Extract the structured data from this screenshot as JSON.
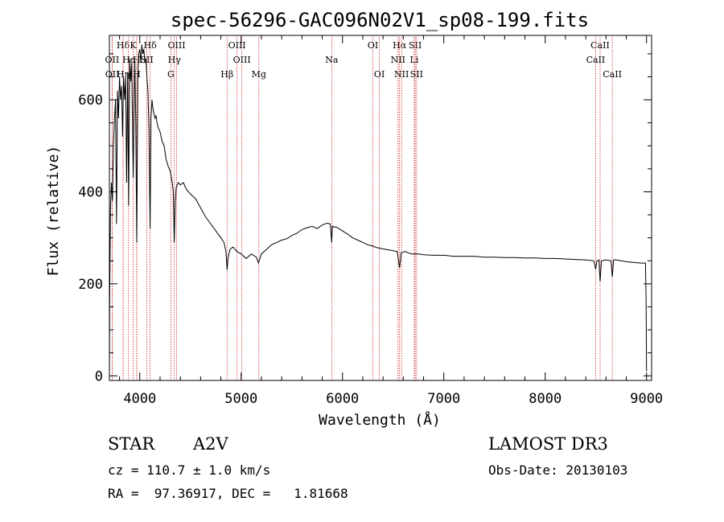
{
  "colors": {
    "axis": "#000000",
    "spectrum": "#000000",
    "line_marker": "#cc2222",
    "background": "#ffffff"
  },
  "info": {
    "object_type": "STAR",
    "subclass": "A2V",
    "redshift": "cz = 110.7 ± 1.0 km/s",
    "coords": "RA =  97.36917, DEC =   1.81668",
    "survey": "LAMOST DR3",
    "obs_date": "Obs-Date: 20130103"
  },
  "chart_data": {
    "type": "line",
    "title": "spec-56296-GAC096N02V1_sp08-199.fits",
    "xlabel": "Wavelength (Å)",
    "ylabel": "Flux (relative)",
    "xlim": [
      3700,
      9050
    ],
    "ylim": [
      -10,
      740
    ],
    "xticks": [
      4000,
      5000,
      6000,
      7000,
      8000,
      9000
    ],
    "yticks": [
      0,
      200,
      400,
      600
    ],
    "grid": false,
    "series": [
      {
        "name": "flux",
        "points": [
          [
            3700,
            0
          ],
          [
            3702,
            160
          ],
          [
            3710,
            360
          ],
          [
            3720,
            420
          ],
          [
            3730,
            380
          ],
          [
            3740,
            500
          ],
          [
            3750,
            560
          ],
          [
            3760,
            600
          ],
          [
            3770,
            330
          ],
          [
            3780,
            620
          ],
          [
            3790,
            560
          ],
          [
            3800,
            650
          ],
          [
            3810,
            600
          ],
          [
            3820,
            630
          ],
          [
            3830,
            520
          ],
          [
            3840,
            650
          ],
          [
            3850,
            600
          ],
          [
            3860,
            650
          ],
          [
            3870,
            420
          ],
          [
            3880,
            660
          ],
          [
            3890,
            370
          ],
          [
            3900,
            690
          ],
          [
            3910,
            640
          ],
          [
            3920,
            680
          ],
          [
            3935,
            430
          ],
          [
            3950,
            690
          ],
          [
            3960,
            550
          ],
          [
            3970,
            290
          ],
          [
            3980,
            650
          ],
          [
            3990,
            700
          ],
          [
            4000,
            710
          ],
          [
            4010,
            680
          ],
          [
            4020,
            720
          ],
          [
            4030,
            700
          ],
          [
            4040,
            710
          ],
          [
            4050,
            680
          ],
          [
            4060,
            690
          ],
          [
            4070,
            650
          ],
          [
            4080,
            620
          ],
          [
            4090,
            540
          ],
          [
            4102,
            320
          ],
          [
            4110,
            560
          ],
          [
            4120,
            600
          ],
          [
            4130,
            580
          ],
          [
            4140,
            570
          ],
          [
            4150,
            560
          ],
          [
            4160,
            565
          ],
          [
            4170,
            550
          ],
          [
            4180,
            540
          ],
          [
            4200,
            530
          ],
          [
            4220,
            510
          ],
          [
            4240,
            500
          ],
          [
            4260,
            470
          ],
          [
            4280,
            455
          ],
          [
            4300,
            445
          ],
          [
            4320,
            420
          ],
          [
            4330,
            400
          ],
          [
            4340,
            290
          ],
          [
            4350,
            380
          ],
          [
            4360,
            410
          ],
          [
            4380,
            420
          ],
          [
            4400,
            415
          ],
          [
            4430,
            420
          ],
          [
            4460,
            405
          ],
          [
            4500,
            395
          ],
          [
            4550,
            385
          ],
          [
            4600,
            365
          ],
          [
            4650,
            345
          ],
          [
            4700,
            330
          ],
          [
            4750,
            315
          ],
          [
            4800,
            300
          ],
          [
            4830,
            290
          ],
          [
            4850,
            270
          ],
          [
            4861,
            230
          ],
          [
            4870,
            255
          ],
          [
            4890,
            275
          ],
          [
            4920,
            280
          ],
          [
            4960,
            270
          ],
          [
            5000,
            265
          ],
          [
            5050,
            255
          ],
          [
            5100,
            265
          ],
          [
            5150,
            258
          ],
          [
            5170,
            245
          ],
          [
            5200,
            265
          ],
          [
            5250,
            275
          ],
          [
            5300,
            285
          ],
          [
            5350,
            290
          ],
          [
            5400,
            295
          ],
          [
            5450,
            298
          ],
          [
            5500,
            305
          ],
          [
            5550,
            310
          ],
          [
            5600,
            318
          ],
          [
            5650,
            322
          ],
          [
            5700,
            325
          ],
          [
            5750,
            320
          ],
          [
            5800,
            328
          ],
          [
            5850,
            332
          ],
          [
            5880,
            330
          ],
          [
            5893,
            290
          ],
          [
            5900,
            325
          ],
          [
            5950,
            322
          ],
          [
            6000,
            315
          ],
          [
            6050,
            308
          ],
          [
            6100,
            300
          ],
          [
            6150,
            295
          ],
          [
            6200,
            290
          ],
          [
            6250,
            285
          ],
          [
            6300,
            282
          ],
          [
            6350,
            278
          ],
          [
            6400,
            276
          ],
          [
            6450,
            274
          ],
          [
            6500,
            272
          ],
          [
            6540,
            270
          ],
          [
            6563,
            235
          ],
          [
            6580,
            268
          ],
          [
            6620,
            270
          ],
          [
            6680,
            265
          ],
          [
            6750,
            265
          ],
          [
            6800,
            263
          ],
          [
            6900,
            262
          ],
          [
            7000,
            262
          ],
          [
            7100,
            260
          ],
          [
            7200,
            260
          ],
          [
            7300,
            260
          ],
          [
            7400,
            258
          ],
          [
            7500,
            258
          ],
          [
            7600,
            257
          ],
          [
            7700,
            257
          ],
          [
            7800,
            256
          ],
          [
            7900,
            256
          ],
          [
            8000,
            255
          ],
          [
            8100,
            255
          ],
          [
            8200,
            254
          ],
          [
            8300,
            253
          ],
          [
            8400,
            252
          ],
          [
            8480,
            250
          ],
          [
            8498,
            232
          ],
          [
            8510,
            250
          ],
          [
            8530,
            252
          ],
          [
            8542,
            205
          ],
          [
            8555,
            250
          ],
          [
            8600,
            252
          ],
          [
            8650,
            250
          ],
          [
            8662,
            215
          ],
          [
            8675,
            252
          ],
          [
            8700,
            252
          ],
          [
            8750,
            250
          ],
          [
            8800,
            248
          ],
          [
            8850,
            247
          ],
          [
            8900,
            246
          ],
          [
            8950,
            245
          ],
          [
            8990,
            245
          ],
          [
            8996,
            160
          ],
          [
            9000,
            10
          ]
        ]
      }
    ],
    "line_markers": [
      {
        "label": "Hδ",
        "wavelength": 3835,
        "row": 0
      },
      {
        "label": "OII",
        "wavelength": 3727,
        "row": 1
      },
      {
        "label": "OII",
        "wavelength": 3729,
        "row": 2
      },
      {
        "label": "Hε",
        "wavelength": 3889,
        "row": 1
      },
      {
        "label": "Hη",
        "wavelength": 3836,
        "row": 2
      },
      {
        "label": "K",
        "wavelength": 3934,
        "row": 0
      },
      {
        "label": "H",
        "wavelength": 3969,
        "row": 1
      },
      {
        "label": "H",
        "wavelength": 3970,
        "row": 2
      },
      {
        "label": "SII",
        "wavelength": 4070,
        "row": 1
      },
      {
        "label": "Hδ",
        "wavelength": 4102,
        "row": 0
      },
      {
        "label": "OIII",
        "wavelength": 4363,
        "row": 0
      },
      {
        "label": "Hγ",
        "wavelength": 4341,
        "row": 1
      },
      {
        "label": "G",
        "wavelength": 4306,
        "row": 2
      },
      {
        "label": "Hβ",
        "wavelength": 4861,
        "row": 2
      },
      {
        "label": "OIII",
        "wavelength": 4959,
        "row": 0
      },
      {
        "label": "OIII",
        "wavelength": 5007,
        "row": 1
      },
      {
        "label": "Mg",
        "wavelength": 5175,
        "row": 2
      },
      {
        "label": "Na",
        "wavelength": 5894,
        "row": 1
      },
      {
        "label": "OI",
        "wavelength": 6300,
        "row": 0
      },
      {
        "label": "OI",
        "wavelength": 6364,
        "row": 2
      },
      {
        "label": "Hα",
        "wavelength": 6563,
        "row": 0
      },
      {
        "label": "NII",
        "wavelength": 6548,
        "row": 1
      },
      {
        "label": "NII",
        "wavelength": 6583,
        "row": 2
      },
      {
        "label": "SII",
        "wavelength": 6717,
        "row": 0
      },
      {
        "label": "Li",
        "wavelength": 6708,
        "row": 1
      },
      {
        "label": "SII",
        "wavelength": 6731,
        "row": 2
      },
      {
        "label": "CaII",
        "wavelength": 8542,
        "row": 0
      },
      {
        "label": "CaII",
        "wavelength": 8498,
        "row": 1
      },
      {
        "label": "CaII",
        "wavelength": 8662,
        "row": 2
      }
    ]
  }
}
